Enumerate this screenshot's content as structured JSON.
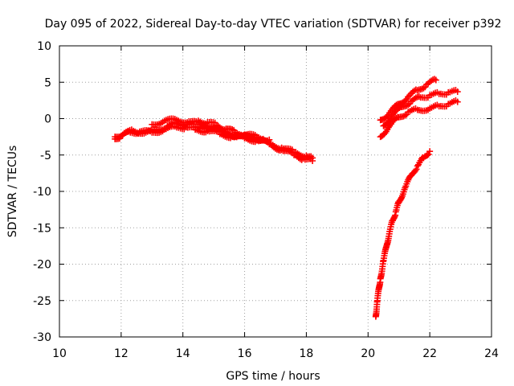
{
  "chart_data": {
    "type": "scatter",
    "title": "Day 095 of 2022, Sidereal Day-to-day VTEC variation (SDTVAR) for receiver p392",
    "xlabel": "GPS time / hours",
    "ylabel": "SDTVAR / TECUs",
    "xlim": [
      10,
      24
    ],
    "ylim": [
      -30,
      10
    ],
    "xticks": [
      10,
      12,
      14,
      16,
      18,
      20,
      22,
      24
    ],
    "yticks": [
      -30,
      -25,
      -20,
      -15,
      -10,
      -5,
      0,
      5,
      10
    ],
    "grid": true,
    "marker": "+",
    "color": "#ff0000",
    "series": [
      {
        "x": [
          11.8,
          12.0,
          12.3,
          12.6,
          13.0,
          13.4,
          13.8,
          14.1,
          14.4,
          14.8,
          15.2,
          15.6,
          16.0,
          16.4,
          16.8,
          17.2,
          17.6,
          18.0,
          18.2
        ],
        "y": [
          -2.8,
          -2.4,
          -1.9,
          -1.8,
          -1.9,
          -1.5,
          -1.2,
          -1.2,
          -1.5,
          -1.7,
          -2.1,
          -2.5,
          -2.7,
          -3.0,
          -3.4,
          -4.0,
          -4.6,
          -5.1,
          -5.4
        ]
      },
      {
        "x": [
          11.8,
          12.1,
          12.4,
          12.8,
          13.2,
          13.5,
          13.8,
          14.1,
          14.4,
          14.8,
          15.2,
          15.6,
          16.0,
          16.4,
          16.8,
          17.2,
          17.6,
          17.9,
          18.2
        ],
        "y": [
          -2.5,
          -2.0,
          -1.7,
          -1.9,
          -1.6,
          -1.0,
          -0.7,
          -0.8,
          -1.1,
          -1.2,
          -1.6,
          -2.2,
          -2.6,
          -2.8,
          -3.5,
          -4.3,
          -5.0,
          -5.5,
          -5.8
        ]
      },
      {
        "x": [
          13.0,
          13.4,
          13.8,
          14.2,
          14.6,
          15.0,
          15.4,
          15.8,
          16.2,
          16.6
        ],
        "y": [
          -0.8,
          -0.3,
          -0.2,
          -0.4,
          -0.8,
          -1.3,
          -2.0,
          -2.4,
          -2.6,
          -2.8
        ]
      },
      {
        "x": [
          14.5,
          14.8,
          15.1,
          15.4,
          15.7,
          16.0,
          16.4,
          16.8
        ],
        "y": [
          -0.3,
          -0.5,
          -0.9,
          -1.4,
          -1.9,
          -2.2,
          -2.5,
          -2.9
        ]
      },
      {
        "x": [
          20.4,
          20.7,
          21.0,
          21.3,
          21.6,
          21.9,
          22.2
        ],
        "y": [
          -0.2,
          0.8,
          2.0,
          3.0,
          3.9,
          4.7,
          5.3
        ]
      },
      {
        "x": [
          20.5,
          20.8,
          21.1,
          21.4,
          21.7,
          22.0,
          22.3,
          22.6,
          22.9
        ],
        "y": [
          -1.0,
          0.5,
          1.6,
          2.4,
          2.9,
          3.2,
          3.4,
          3.6,
          3.7
        ]
      },
      {
        "x": [
          20.4,
          20.7,
          21.0,
          21.3,
          21.6,
          22.0,
          22.3,
          22.6,
          22.9
        ],
        "y": [
          -2.5,
          -1.0,
          0.2,
          0.9,
          1.2,
          1.4,
          1.7,
          2.0,
          2.3
        ]
      },
      {
        "x": [
          20.25,
          20.3,
          20.4,
          20.5,
          20.6,
          20.7,
          20.8,
          20.9,
          21.0,
          21.2,
          21.4,
          21.6,
          21.8,
          22.0
        ],
        "y": [
          -27.2,
          -25.0,
          -22.0,
          -19.5,
          -17.5,
          -15.5,
          -14.0,
          -12.8,
          -11.5,
          -9.5,
          -7.8,
          -6.5,
          -5.4,
          -4.5
        ]
      }
    ]
  }
}
